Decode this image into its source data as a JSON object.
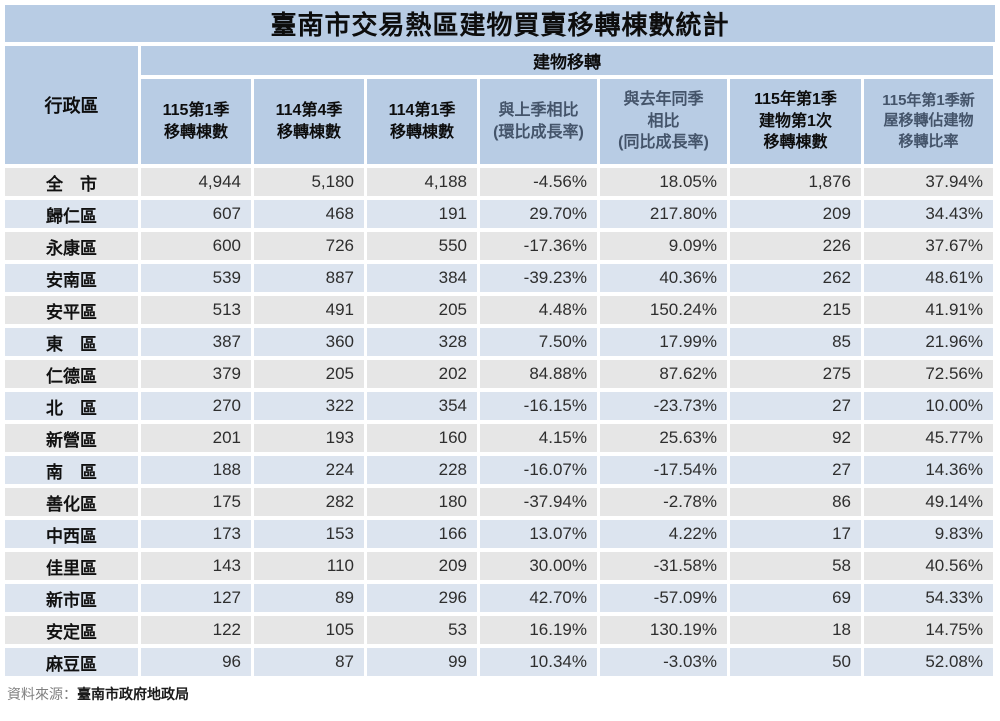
{
  "title": "臺南市交易熱區建物買賣移轉棟數統計",
  "table": {
    "corner_header": "行政區",
    "group_header": "建物移轉",
    "columns": [
      {
        "label": "115第1季\n移轉棟數",
        "tone": "black"
      },
      {
        "label": "114第4季\n移轉棟數",
        "tone": "black"
      },
      {
        "label": "114第1季\n移轉棟數",
        "tone": "black"
      },
      {
        "label": "與上季相比\n(環比成長率)",
        "tone": "slate"
      },
      {
        "label": "與去年同季\n相比\n(同比成長率)",
        "tone": "slate"
      },
      {
        "label": "115年第1季\n建物第1次\n移轉棟數",
        "tone": "black"
      },
      {
        "label": "115年第1季新\n屋移轉佔建物\n移轉比率",
        "tone": "slate"
      }
    ],
    "rows": [
      {
        "district": "全　市",
        "cells": [
          "4,944",
          "5,180",
          "4,188",
          "-4.56%",
          "18.05%",
          "1,876",
          "37.94%"
        ]
      },
      {
        "district": "歸仁區",
        "cells": [
          "607",
          "468",
          "191",
          "29.70%",
          "217.80%",
          "209",
          "34.43%"
        ]
      },
      {
        "district": "永康區",
        "cells": [
          "600",
          "726",
          "550",
          "-17.36%",
          "9.09%",
          "226",
          "37.67%"
        ]
      },
      {
        "district": "安南區",
        "cells": [
          "539",
          "887",
          "384",
          "-39.23%",
          "40.36%",
          "262",
          "48.61%"
        ]
      },
      {
        "district": "安平區",
        "cells": [
          "513",
          "491",
          "205",
          "4.48%",
          "150.24%",
          "215",
          "41.91%"
        ]
      },
      {
        "district": "東　區",
        "cells": [
          "387",
          "360",
          "328",
          "7.50%",
          "17.99%",
          "85",
          "21.96%"
        ]
      },
      {
        "district": "仁德區",
        "cells": [
          "379",
          "205",
          "202",
          "84.88%",
          "87.62%",
          "275",
          "72.56%"
        ]
      },
      {
        "district": "北　區",
        "cells": [
          "270",
          "322",
          "354",
          "-16.15%",
          "-23.73%",
          "27",
          "10.00%"
        ]
      },
      {
        "district": "新營區",
        "cells": [
          "201",
          "193",
          "160",
          "4.15%",
          "25.63%",
          "92",
          "45.77%"
        ]
      },
      {
        "district": "南　區",
        "cells": [
          "188",
          "224",
          "228",
          "-16.07%",
          "-17.54%",
          "27",
          "14.36%"
        ]
      },
      {
        "district": "善化區",
        "cells": [
          "175",
          "282",
          "180",
          "-37.94%",
          "-2.78%",
          "86",
          "49.14%"
        ]
      },
      {
        "district": "中西區",
        "cells": [
          "173",
          "153",
          "166",
          "13.07%",
          "4.22%",
          "17",
          "9.83%"
        ]
      },
      {
        "district": "佳里區",
        "cells": [
          "143",
          "110",
          "209",
          "30.00%",
          "-31.58%",
          "58",
          "40.56%"
        ]
      },
      {
        "district": "新市區",
        "cells": [
          "127",
          "89",
          "296",
          "42.70%",
          "-57.09%",
          "69",
          "54.33%"
        ]
      },
      {
        "district": "安定區",
        "cells": [
          "122",
          "105",
          "53",
          "16.19%",
          "130.19%",
          "18",
          "14.75%"
        ]
      },
      {
        "district": "麻豆區",
        "cells": [
          "96",
          "87",
          "99",
          "10.34%",
          "-3.03%",
          "50",
          "52.08%"
        ]
      }
    ]
  },
  "footer": {
    "source_label": "資料來源：",
    "source_value": "臺南市政府地政局"
  },
  "colors": {
    "header_blue": "#b8cce4",
    "row_gray": "#e6e6e6",
    "row_blue": "#dce4ef",
    "grid_white": "#ffffff"
  },
  "chart_data": {
    "type": "table",
    "title": "臺南市交易熱區建物買賣移轉棟數統計",
    "group_header": "建物移轉",
    "columns": [
      "行政區",
      "115第1季移轉棟數",
      "114第4季移轉棟數",
      "114第1季移轉棟數",
      "與上季相比(環比成長率)",
      "與去年同季相比(同比成長率)",
      "115年第1季建物第1次移轉棟數",
      "115年第1季新屋移轉佔建物移轉比率"
    ],
    "rows": [
      [
        "全市",
        4944,
        5180,
        4188,
        "-4.56%",
        "18.05%",
        1876,
        "37.94%"
      ],
      [
        "歸仁區",
        607,
        468,
        191,
        "29.70%",
        "217.80%",
        209,
        "34.43%"
      ],
      [
        "永康區",
        600,
        726,
        550,
        "-17.36%",
        "9.09%",
        226,
        "37.67%"
      ],
      [
        "安南區",
        539,
        887,
        384,
        "-39.23%",
        "40.36%",
        262,
        "48.61%"
      ],
      [
        "安平區",
        513,
        491,
        205,
        "4.48%",
        "150.24%",
        215,
        "41.91%"
      ],
      [
        "東區",
        387,
        360,
        328,
        "7.50%",
        "17.99%",
        85,
        "21.96%"
      ],
      [
        "仁德區",
        379,
        205,
        202,
        "84.88%",
        "87.62%",
        275,
        "72.56%"
      ],
      [
        "北區",
        270,
        322,
        354,
        "-16.15%",
        "-23.73%",
        27,
        "10.00%"
      ],
      [
        "新營區",
        201,
        193,
        160,
        "4.15%",
        "25.63%",
        92,
        "45.77%"
      ],
      [
        "南區",
        188,
        224,
        228,
        "-16.07%",
        "-17.54%",
        27,
        "14.36%"
      ],
      [
        "善化區",
        175,
        282,
        180,
        "-37.94%",
        "-2.78%",
        86,
        "49.14%"
      ],
      [
        "中西區",
        173,
        153,
        166,
        "13.07%",
        "4.22%",
        17,
        "9.83%"
      ],
      [
        "佳里區",
        143,
        110,
        209,
        "30.00%",
        "-31.58%",
        58,
        "40.56%"
      ],
      [
        "新市區",
        127,
        89,
        296,
        "42.70%",
        "-57.09%",
        69,
        "54.33%"
      ],
      [
        "安定區",
        122,
        105,
        53,
        "16.19%",
        "130.19%",
        18,
        "14.75%"
      ],
      [
        "麻豆區",
        96,
        87,
        99,
        "10.34%",
        "-3.03%",
        50,
        "52.08%"
      ]
    ],
    "source": "資料來源：臺南市政府地政局"
  }
}
